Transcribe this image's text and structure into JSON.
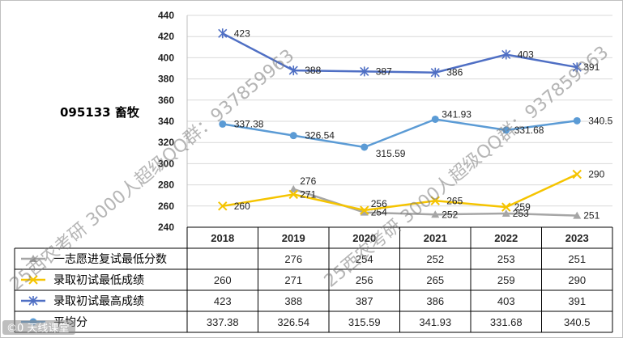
{
  "title": "095133 畜牧",
  "watermark_text": "25西农考研 3000人超级QQ群：937859963",
  "corner_watermark": "©0 天线课堂",
  "chart_data": {
    "type": "line",
    "categories": [
      "2018",
      "2019",
      "2020",
      "2021",
      "2022",
      "2023"
    ],
    "ylim": [
      240,
      440
    ],
    "yticks": [
      240,
      260,
      280,
      300,
      320,
      340,
      360,
      380,
      400,
      420,
      440
    ],
    "grid": "horizontal",
    "legend": "table-below",
    "series": [
      {
        "name": "一志愿进复试最低分数",
        "color": "#a6a6a6",
        "marker": "triangle",
        "values": [
          null,
          276,
          254,
          252,
          253,
          251
        ],
        "table": [
          "",
          "276",
          "254",
          "252",
          "253",
          "251"
        ]
      },
      {
        "name": "录取初试最低成绩",
        "color": "#f5c400",
        "marker": "x",
        "values": [
          260,
          271,
          256,
          265,
          259,
          290
        ],
        "table": [
          "260",
          "271",
          "256",
          "265",
          "259",
          "290"
        ]
      },
      {
        "name": "录取初试最高成绩",
        "color": "#4f6fc4",
        "marker": "star",
        "values": [
          423,
          388,
          387,
          386,
          403,
          391
        ],
        "table": [
          "423",
          "388",
          "387",
          "386",
          "403",
          "391"
        ]
      },
      {
        "name": "平均分",
        "color": "#5b9bd5",
        "marker": "circle",
        "values": [
          337.38,
          326.54,
          315.59,
          341.93,
          331.68,
          340.5
        ],
        "table": [
          "337.38",
          "326.54",
          "315.59",
          "341.93",
          "331.68",
          "340.5"
        ]
      }
    ]
  }
}
